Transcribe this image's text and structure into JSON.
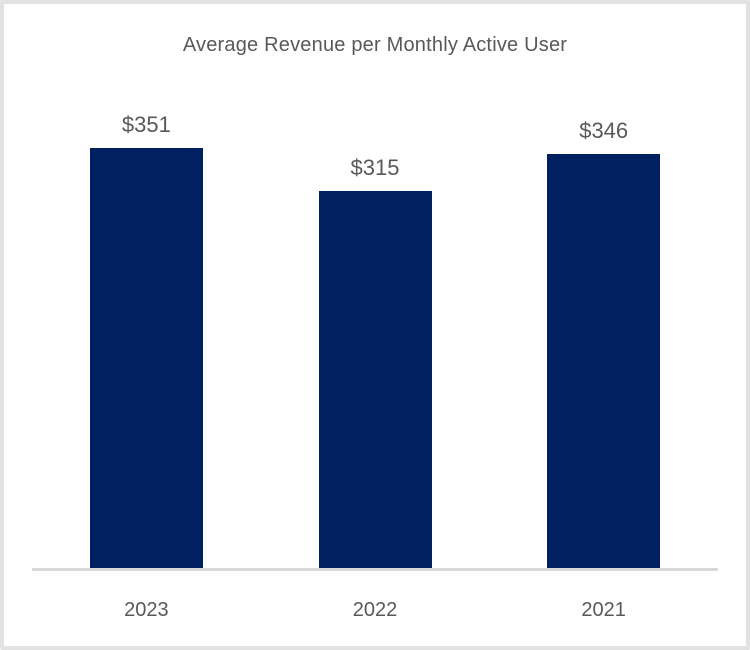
{
  "chart_data": {
    "type": "bar",
    "title": "Average Revenue per Monthly Active User",
    "categories": [
      "2023",
      "2022",
      "2021"
    ],
    "values": [
      351,
      315,
      346
    ],
    "data_labels": [
      "$351",
      "$315",
      "$346"
    ],
    "xlabel": "",
    "ylabel": "",
    "ylim": [
      0,
      480
    ],
    "grid": false,
    "legend": false,
    "bar_color": "#002060",
    "text_color": "#595959",
    "axis_line_color": "#d9d9d9"
  }
}
